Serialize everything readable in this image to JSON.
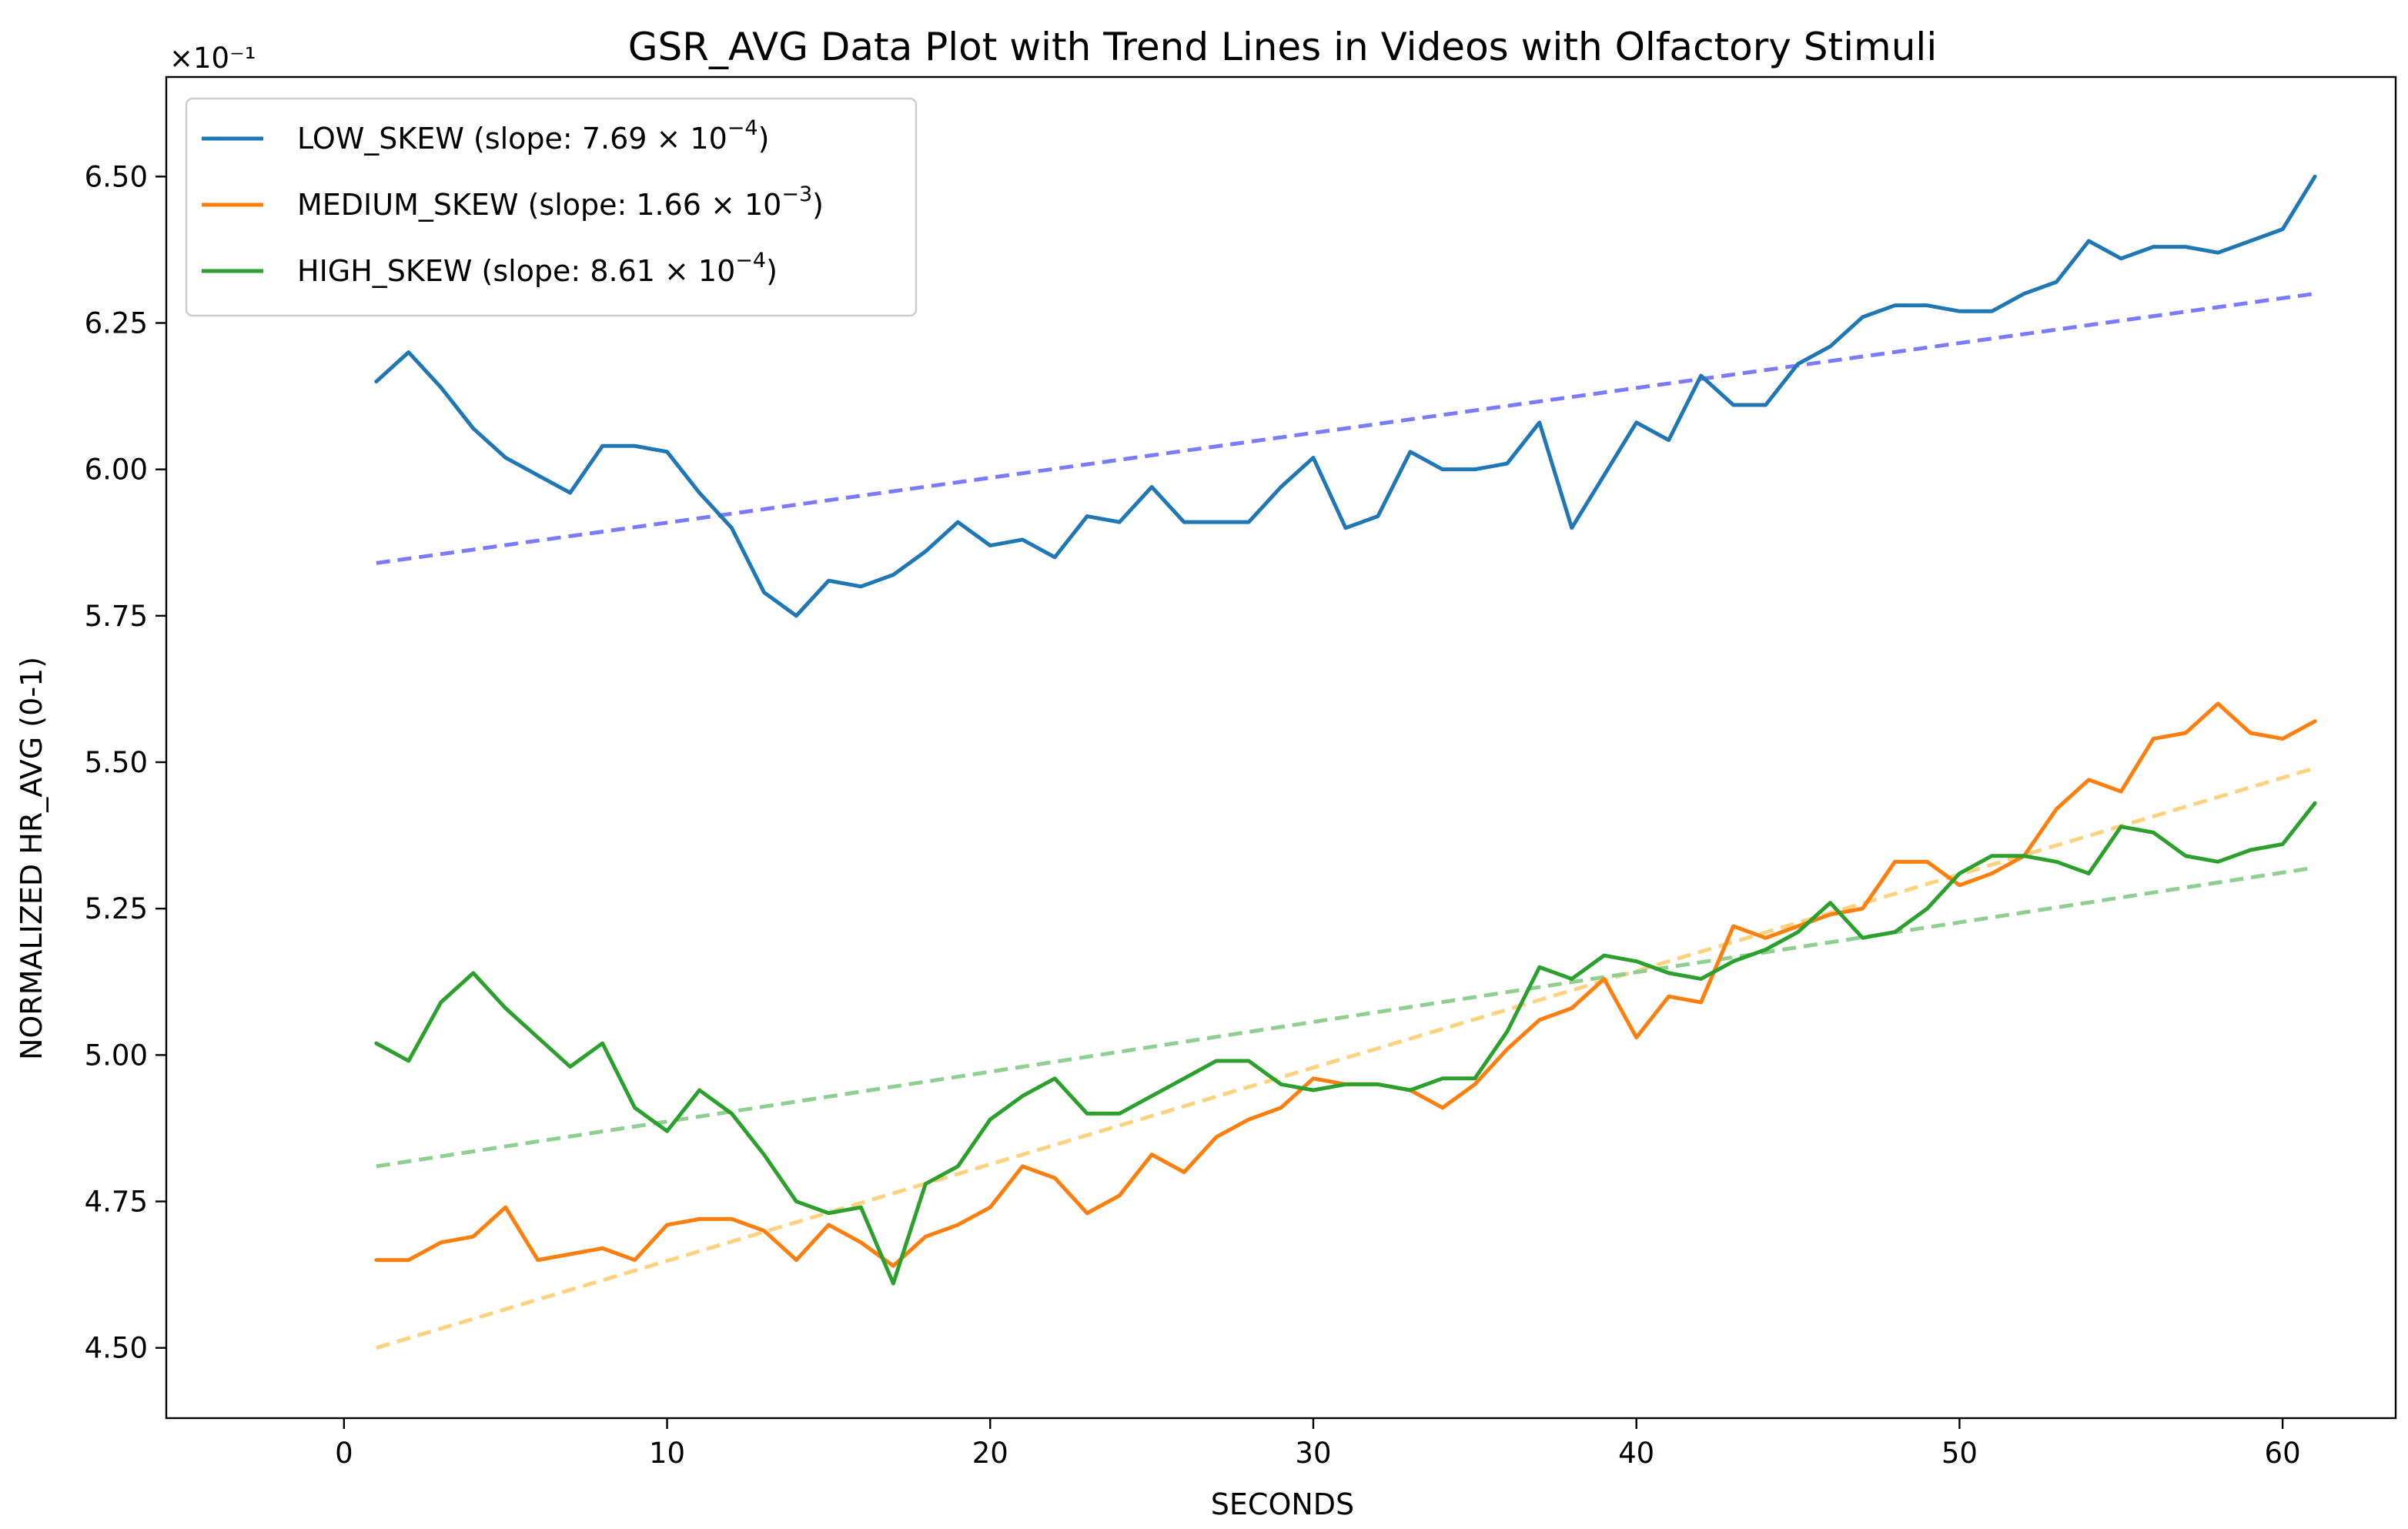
{
  "chart_data": {
    "type": "line",
    "title": "GSR_AVG Data Plot with Trend Lines in Videos with Olfactory Stimuli",
    "xlabel": "SECONDS",
    "ylabel": "NORMALIZED HR_AVG (0-1)",
    "y_offset_label": "×10⁻¹",
    "xlim": [
      -5.5,
      63.5
    ],
    "ylim": [
      4.38,
      6.67
    ],
    "x_ticks": [
      0,
      10,
      20,
      30,
      40,
      50,
      60
    ],
    "x_tick_labels": [
      "0",
      "10",
      "20",
      "30",
      "40",
      "50",
      "60"
    ],
    "y_ticks": [
      4.5,
      4.75,
      5.0,
      5.25,
      5.5,
      5.75,
      6.0,
      6.25,
      6.5
    ],
    "y_tick_labels": [
      "4.50",
      "4.75",
      "5.00",
      "5.25",
      "5.50",
      "5.75",
      "6.00",
      "6.25",
      "6.50"
    ],
    "grid": false,
    "legend_position": "top-left",
    "x": [
      1,
      2,
      3,
      4,
      5,
      6,
      7,
      8,
      9,
      10,
      11,
      12,
      13,
      14,
      15,
      16,
      17,
      18,
      19,
      20,
      21,
      22,
      23,
      24,
      25,
      26,
      27,
      28,
      29,
      30,
      31,
      32,
      33,
      34,
      35,
      36,
      37,
      38,
      39,
      40,
      41,
      42,
      43,
      44,
      45,
      46,
      47,
      48,
      49,
      50,
      51,
      52,
      53,
      54,
      55,
      56,
      57,
      58,
      59,
      60,
      61
    ],
    "series": [
      {
        "name": "LOW_SKEW",
        "legend_label": "LOW_SKEW (slope: 7.69 × 10",
        "legend_exp": "−4",
        "color": "#1f77b4",
        "values": [
          6.15,
          6.2,
          6.14,
          6.07,
          6.02,
          5.99,
          5.96,
          6.04,
          6.04,
          6.03,
          5.96,
          5.9,
          5.79,
          5.75,
          5.81,
          5.8,
          5.82,
          5.86,
          5.91,
          5.87,
          5.88,
          5.85,
          5.92,
          5.91,
          5.97,
          5.91,
          5.91,
          5.91,
          5.97,
          6.02,
          5.9,
          5.92,
          6.03,
          6.0,
          6.0,
          6.01,
          6.08,
          5.9,
          5.99,
          6.08,
          6.05,
          6.16,
          6.11,
          6.11,
          6.18,
          6.21,
          6.26,
          6.28,
          6.28,
          6.27,
          6.27,
          6.3,
          6.32,
          6.39,
          6.36,
          6.38,
          6.38,
          6.37,
          6.39,
          6.41,
          6.5
        ],
        "trend": {
          "start": [
            1,
            5.84
          ],
          "end": [
            61,
            6.3
          ],
          "color": "#7b7bff"
        }
      },
      {
        "name": "MEDIUM_SKEW",
        "legend_label": "MEDIUM_SKEW (slope: 1.66 × 10",
        "legend_exp": "−3",
        "color": "#ff7f0e",
        "values": [
          4.65,
          4.65,
          4.68,
          4.69,
          4.74,
          4.65,
          4.66,
          4.67,
          4.65,
          4.71,
          4.72,
          4.72,
          4.7,
          4.65,
          4.71,
          4.68,
          4.64,
          4.69,
          4.71,
          4.74,
          4.81,
          4.79,
          4.73,
          4.76,
          4.83,
          4.8,
          4.86,
          4.89,
          4.91,
          4.96,
          4.95,
          4.95,
          4.94,
          4.91,
          4.95,
          5.01,
          5.06,
          5.08,
          5.13,
          5.03,
          5.1,
          5.09,
          5.22,
          5.2,
          5.22,
          5.24,
          5.25,
          5.33,
          5.33,
          5.29,
          5.31,
          5.34,
          5.42,
          5.47,
          5.45,
          5.54,
          5.55,
          5.6,
          5.55,
          5.54,
          5.57
        ],
        "trend": {
          "start": [
            1,
            4.5
          ],
          "end": [
            61,
            5.49
          ],
          "color": "#ffd27f"
        }
      },
      {
        "name": "HIGH_SKEW",
        "legend_label": "HIGH_SKEW (slope: 8.61 × 10",
        "legend_exp": "−4",
        "color": "#2ca02c",
        "values": [
          5.02,
          4.99,
          5.09,
          5.14,
          5.08,
          5.03,
          4.98,
          5.02,
          4.91,
          4.87,
          4.94,
          4.9,
          4.83,
          4.75,
          4.73,
          4.74,
          4.61,
          4.78,
          4.81,
          4.89,
          4.93,
          4.96,
          4.9,
          4.9,
          4.93,
          4.96,
          4.99,
          4.99,
          4.95,
          4.94,
          4.95,
          4.95,
          4.94,
          4.96,
          4.96,
          5.04,
          5.15,
          5.13,
          5.17,
          5.16,
          5.14,
          5.13,
          5.16,
          5.18,
          5.21,
          5.26,
          5.2,
          5.21,
          5.25,
          5.31,
          5.34,
          5.34,
          5.33,
          5.31,
          5.39,
          5.38,
          5.34,
          5.33,
          5.35,
          5.36,
          5.43
        ],
        "trend": {
          "start": [
            1,
            4.81
          ],
          "end": [
            61,
            5.32
          ],
          "color": "#8fcf8f"
        }
      }
    ]
  }
}
